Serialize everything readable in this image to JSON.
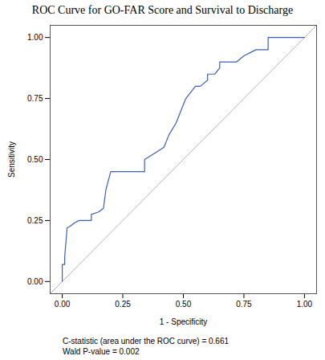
{
  "chart_data": {
    "type": "line",
    "title": "ROC Curve for GO-FAR Score and Survival to Discharge",
    "x_label": "1 - Specificity",
    "y_label": "Sensitivity",
    "x": [
      0,
      0,
      0.01,
      0.01,
      0.02,
      0.03,
      0.05,
      0.07,
      0.1,
      0.12,
      0.12,
      0.15,
      0.17,
      0.18,
      0.2,
      0.34,
      0.34,
      0.38,
      0.42,
      0.44,
      0.47,
      0.49,
      0.51,
      0.55,
      0.57,
      0.6,
      0.6,
      0.63,
      0.65,
      0.65,
      0.72,
      0.75,
      0.78,
      0.8,
      0.85,
      0.85,
      1.0
    ],
    "series": [
      {
        "color": "#3b5fc0",
        "values": [
          0,
          0.07,
          0.07,
          0.1,
          0.22,
          0.225,
          0.24,
          0.25,
          0.25,
          0.25,
          0.275,
          0.285,
          0.3,
          0.375,
          0.45,
          0.45,
          0.5,
          0.525,
          0.55,
          0.6,
          0.65,
          0.7,
          0.75,
          0.8,
          0.8,
          0.825,
          0.85,
          0.85,
          0.875,
          0.9,
          0.9,
          0.925,
          0.94,
          0.95,
          0.95,
          1.0,
          1.0
        ]
      }
    ],
    "reference_line": {
      "x": [
        -0.05,
        1.05
      ],
      "y": [
        -0.05,
        1.05
      ],
      "color": "#b4b4b4"
    },
    "xlim": [
      -0.05,
      1.05
    ],
    "ylim": [
      -0.05,
      1.05
    ],
    "xticks": [
      {
        "value": 0,
        "label": "0.00"
      },
      {
        "value": 0.25,
        "label": "0.25"
      },
      {
        "value": 0.5,
        "label": "0.50"
      },
      {
        "value": 0.75,
        "label": "0.75"
      },
      {
        "value": 1,
        "label": "1.00"
      }
    ],
    "yticks": [
      {
        "value": 0,
        "label": "0.00"
      },
      {
        "value": 0.25,
        "label": "0.25"
      },
      {
        "value": 0.5,
        "label": "0.50"
      },
      {
        "value": 0.75,
        "label": "0.75"
      },
      {
        "value": 1,
        "label": "1.00"
      }
    ],
    "grid": false,
    "annotations": [
      "C-statistic (area under the ROC curve) = 0.661",
      "Wald P-value = 0.002"
    ]
  }
}
